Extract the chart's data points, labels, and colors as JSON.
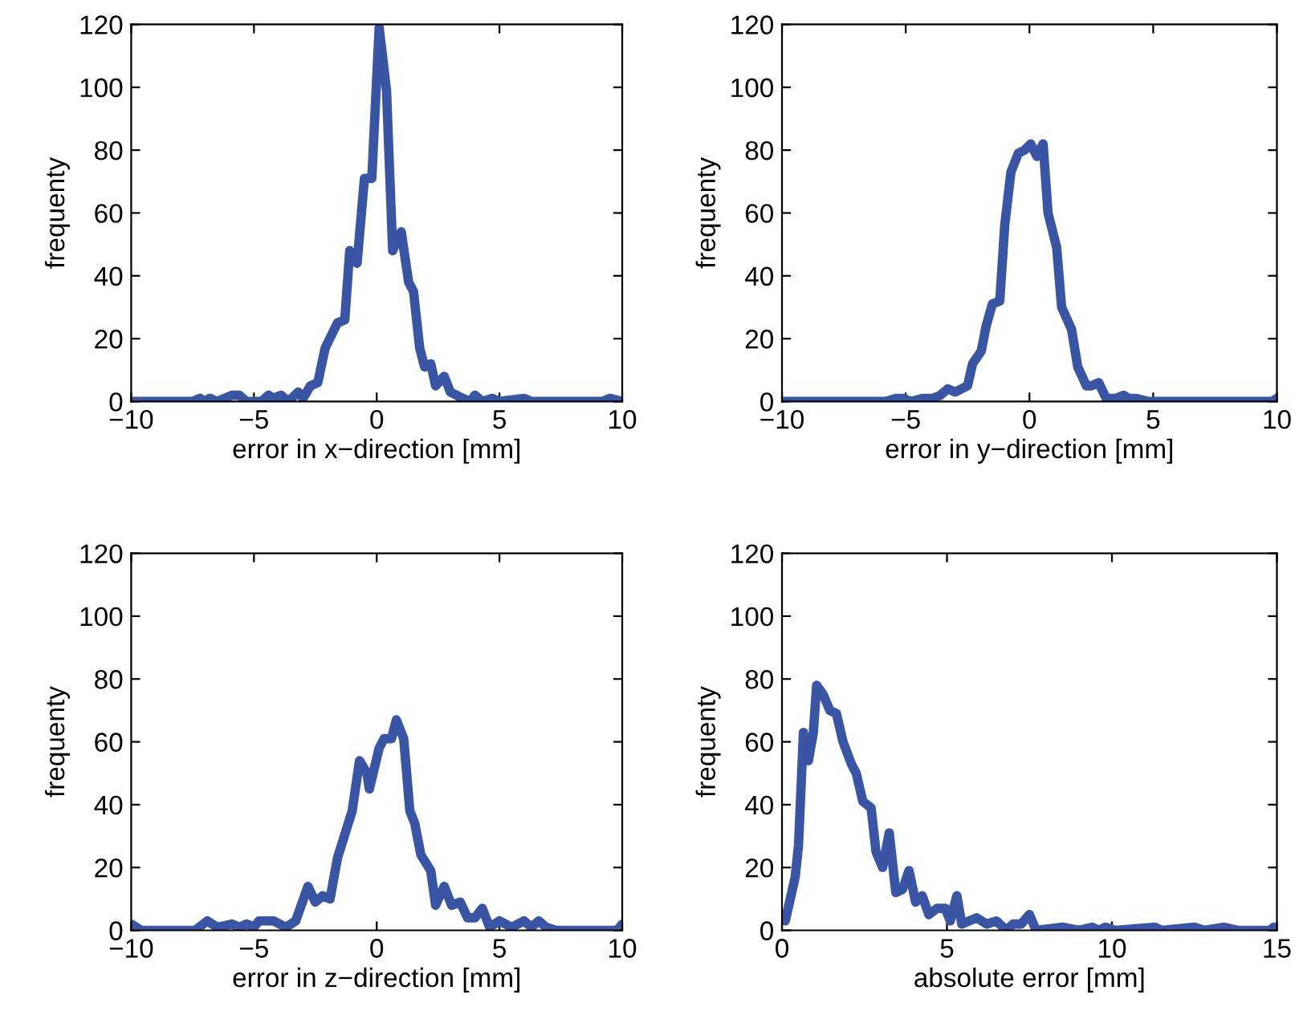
{
  "chart_data": [
    {
      "type": "line",
      "xlabel": "error in x−direction [mm]",
      "ylabel": "frequenty",
      "xlim": [
        -10,
        10
      ],
      "xticks": [
        -10,
        -5,
        0,
        5,
        10
      ],
      "ylim": [
        0,
        120
      ],
      "yticks": [
        0,
        20,
        40,
        60,
        80,
        100,
        120
      ],
      "grid": false,
      "series": [
        {
          "color": "#3a55a4",
          "x": [
            -10,
            -7.5,
            -7.2,
            -7.0,
            -6.8,
            -6.5,
            -5.9,
            -5.6,
            -5.3,
            -4.7,
            -4.4,
            -4.2,
            -3.9,
            -3.6,
            -3.2,
            -3.0,
            -2.7,
            -2.4,
            -2.1,
            -1.6,
            -1.3,
            -1.1,
            -0.8,
            -0.5,
            -0.2,
            0.1,
            0.4,
            0.65,
            1.0,
            1.3,
            1.5,
            1.75,
            1.95,
            2.2,
            2.4,
            2.75,
            3.0,
            3.5,
            3.8,
            4.0,
            4.3,
            4.7,
            5.0,
            6.0,
            6.3,
            9.2,
            9.5,
            10
          ],
          "values": [
            0,
            0,
            1,
            0,
            1,
            0,
            2,
            2,
            0,
            0,
            2,
            1,
            2,
            0,
            3,
            1,
            5,
            6,
            17,
            25,
            26,
            48,
            44,
            71,
            71,
            119,
            99,
            48,
            54,
            38,
            35,
            17,
            11,
            12,
            5,
            8,
            3,
            1,
            0,
            2,
            0,
            1,
            0,
            1,
            0,
            0,
            1,
            0
          ]
        }
      ]
    },
    {
      "type": "line",
      "xlabel": "error in y−direction [mm]",
      "ylabel": "frequenty",
      "xlim": [
        -10,
        10
      ],
      "xticks": [
        -10,
        -5,
        0,
        5,
        10
      ],
      "ylim": [
        0,
        120
      ],
      "yticks": [
        0,
        20,
        40,
        60,
        80,
        100,
        120
      ],
      "grid": false,
      "series": [
        {
          "color": "#3a55a4",
          "x": [
            -10,
            -5.8,
            -5.4,
            -5.1,
            -4.8,
            -4.3,
            -3.9,
            -3.6,
            -3.3,
            -3.0,
            -2.5,
            -2.3,
            -1.95,
            -1.75,
            -1.5,
            -1.2,
            -1.0,
            -0.75,
            -0.45,
            -0.2,
            0.05,
            0.3,
            0.55,
            0.75,
            1.1,
            1.3,
            1.7,
            1.95,
            2.3,
            2.5,
            2.8,
            3.1,
            3.5,
            3.8,
            4.0,
            4.3,
            4.8,
            9.8,
            10
          ],
          "values": [
            0,
            0,
            1,
            1,
            0,
            1,
            1,
            2,
            4,
            3,
            5,
            12,
            16,
            24,
            31,
            32,
            56,
            73,
            79,
            80,
            82,
            78,
            82,
            60,
            49,
            30,
            23,
            11,
            5,
            5,
            6,
            1,
            1,
            2,
            1,
            1,
            0,
            0,
            1
          ]
        }
      ]
    },
    {
      "type": "line",
      "xlabel": "error in z−direction [mm]",
      "ylabel": "frequenty",
      "xlim": [
        -10,
        10
      ],
      "xticks": [
        -10,
        -5,
        0,
        5,
        10
      ],
      "ylim": [
        0,
        120
      ],
      "yticks": [
        0,
        20,
        40,
        60,
        80,
        100,
        120
      ],
      "grid": false,
      "series": [
        {
          "color": "#3a55a4",
          "x": [
            -10,
            -9.6,
            -7.4,
            -6.9,
            -6.5,
            -5.9,
            -5.6,
            -5.3,
            -5.0,
            -4.8,
            -4.2,
            -3.7,
            -3.3,
            -2.8,
            -2.5,
            -2.2,
            -1.9,
            -1.6,
            -1.0,
            -0.7,
            -0.4,
            -0.3,
            0.1,
            0.3,
            0.6,
            0.8,
            1.1,
            1.35,
            1.55,
            1.8,
            2.2,
            2.4,
            2.75,
            3.05,
            3.4,
            3.7,
            4.0,
            4.3,
            4.6,
            5.0,
            5.5,
            6.0,
            6.3,
            6.6,
            6.9,
            7.3,
            9.8,
            10
          ],
          "values": [
            2,
            0,
            0,
            3,
            1,
            2,
            1,
            2,
            1,
            3,
            3,
            1,
            3,
            14,
            9,
            11,
            10,
            23,
            38,
            54,
            50,
            45,
            58,
            61,
            61,
            67,
            61,
            38,
            34,
            24,
            19,
            8,
            14,
            8,
            9,
            4,
            4,
            7,
            1,
            3,
            1,
            3,
            1,
            3,
            1,
            0,
            0,
            2
          ]
        }
      ]
    },
    {
      "type": "line",
      "xlabel": "absolute error [mm]",
      "ylabel": "frequenty",
      "xlim": [
        0,
        15
      ],
      "xticks": [
        0,
        5,
        10,
        15
      ],
      "ylim": [
        0,
        120
      ],
      "yticks": [
        0,
        20,
        40,
        60,
        80,
        100,
        120
      ],
      "grid": false,
      "series": [
        {
          "color": "#3a55a4",
          "x": [
            0.1,
            0.4,
            0.5,
            0.65,
            0.8,
            0.95,
            1.05,
            1.25,
            1.45,
            1.65,
            1.85,
            2.1,
            2.25,
            2.45,
            2.7,
            2.85,
            3.05,
            3.25,
            3.45,
            3.65,
            3.85,
            4.05,
            4.25,
            4.45,
            4.7,
            4.95,
            5.1,
            5.3,
            5.45,
            5.9,
            6.2,
            6.5,
            6.8,
            7.0,
            7.25,
            7.5,
            7.7,
            8.5,
            9.0,
            9.4,
            9.6,
            9.8,
            10.1,
            11.3,
            11.5,
            12.5,
            12.8,
            13.4,
            13.8,
            14.8,
            14.9
          ],
          "values": [
            3,
            17,
            27,
            63,
            54,
            63,
            78,
            75,
            70,
            69,
            60,
            53,
            50,
            41,
            39,
            25,
            20,
            31,
            12,
            13,
            19,
            9,
            11,
            5,
            7,
            7,
            3,
            11,
            2,
            4,
            2,
            3,
            0,
            2,
            2,
            5,
            0,
            1,
            0,
            1,
            0,
            1,
            0,
            1,
            0,
            1,
            0,
            1,
            0,
            0,
            1
          ]
        }
      ]
    }
  ]
}
